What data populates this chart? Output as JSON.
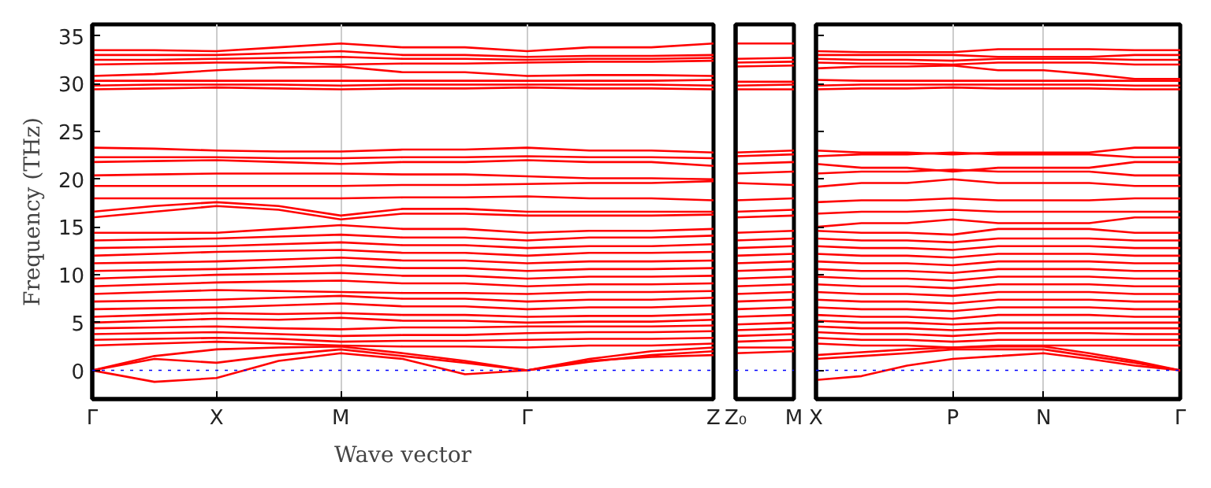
{
  "chart_data": [
    {
      "type": "line",
      "ylabel": "Frequency (THz)",
      "xlabel": "Wave vector",
      "categories": [
        "Γ",
        null,
        "X",
        null,
        "M",
        null,
        null,
        "Γ",
        null,
        null,
        "Z"
      ],
      "ylim": [
        -3,
        36.2
      ],
      "yticks": [
        0,
        5,
        10,
        15,
        20,
        25,
        30,
        35
      ],
      "grid": "x",
      "ref_lines": [
        {
          "axis": "y",
          "value": 0,
          "color": "#0000ff",
          "line_style": "dotted"
        }
      ],
      "series": [
        {
          "color": "#ff0000",
          "values": [
            0,
            -1.2,
            -0.8,
            1.0,
            1.8,
            1.2,
            -0.4,
            0,
            1.0,
            1.4,
            1.6
          ]
        },
        {
          "color": "#ff0000",
          "values": [
            0,
            1.2,
            0.8,
            1.6,
            2.2,
            1.5,
            0.8,
            0,
            0.9,
            1.6,
            2.0
          ]
        },
        {
          "color": "#ff0000",
          "values": [
            0,
            1.5,
            2.2,
            2.4,
            2.5,
            1.8,
            1.0,
            0,
            1.2,
            2.0,
            2.4
          ]
        },
        {
          "color": "#ff0000",
          "values": [
            2.6,
            2.8,
            3.0,
            2.8,
            2.6,
            2.5,
            2.5,
            2.4,
            2.6,
            2.6,
            2.8
          ]
        },
        {
          "color": "#ff0000",
          "values": [
            3.2,
            3.3,
            3.4,
            3.3,
            3.0,
            3.1,
            3.1,
            3.2,
            3.3,
            3.3,
            3.4
          ]
        },
        {
          "color": "#ff0000",
          "values": [
            3.8,
            3.9,
            4.0,
            3.8,
            3.6,
            3.7,
            3.7,
            3.9,
            4.0,
            4.0,
            4.1
          ]
        },
        {
          "color": "#ff0000",
          "values": [
            4.4,
            4.5,
            4.6,
            4.4,
            4.3,
            4.5,
            4.5,
            4.6,
            4.6,
            4.6,
            4.7
          ]
        },
        {
          "color": "#ff0000",
          "values": [
            5.0,
            5.2,
            5.4,
            5.3,
            5.5,
            5.2,
            5.2,
            5.0,
            5.1,
            5.1,
            5.3
          ]
        },
        {
          "color": "#ff0000",
          "values": [
            5.6,
            5.8,
            6.0,
            5.9,
            6.0,
            5.8,
            5.8,
            5.6,
            5.7,
            5.7,
            5.9
          ]
        },
        {
          "color": "#ff0000",
          "values": [
            6.4,
            6.5,
            6.6,
            6.8,
            7.0,
            6.7,
            6.7,
            6.4,
            6.6,
            6.6,
            6.8
          ]
        },
        {
          "color": "#ff0000",
          "values": [
            7.2,
            7.3,
            7.4,
            7.6,
            7.8,
            7.5,
            7.5,
            7.2,
            7.4,
            7.4,
            7.6
          ]
        },
        {
          "color": "#ff0000",
          "values": [
            8.0,
            8.2,
            8.4,
            8.3,
            8.2,
            8.1,
            8.1,
            8.0,
            8.2,
            8.2,
            8.3
          ]
        },
        {
          "color": "#ff0000",
          "values": [
            8.8,
            9.0,
            9.2,
            9.3,
            9.4,
            9.1,
            9.1,
            8.8,
            9.0,
            9.0,
            9.1
          ]
        },
        {
          "color": "#ff0000",
          "values": [
            9.6,
            9.8,
            10.0,
            10.1,
            10.2,
            9.9,
            9.9,
            9.6,
            9.8,
            9.8,
            9.9
          ]
        },
        {
          "color": "#ff0000",
          "values": [
            10.4,
            10.5,
            10.6,
            10.8,
            11.0,
            10.7,
            10.7,
            10.4,
            10.6,
            10.6,
            10.7
          ]
        },
        {
          "color": "#ff0000",
          "values": [
            11.2,
            11.3,
            11.4,
            11.6,
            11.8,
            11.5,
            11.5,
            11.2,
            11.4,
            11.4,
            11.5
          ]
        },
        {
          "color": "#ff0000",
          "values": [
            12.0,
            12.2,
            12.4,
            12.5,
            12.6,
            12.3,
            12.3,
            12.0,
            12.3,
            12.3,
            12.4
          ]
        },
        {
          "color": "#ff0000",
          "values": [
            12.8,
            12.9,
            13.0,
            13.2,
            13.4,
            13.1,
            13.1,
            12.8,
            13.0,
            13.0,
            13.2
          ]
        },
        {
          "color": "#ff0000",
          "values": [
            13.6,
            13.7,
            13.8,
            14.0,
            14.2,
            13.9,
            13.9,
            13.6,
            13.9,
            13.9,
            14.1
          ]
        },
        {
          "color": "#ff0000",
          "values": [
            14.4,
            14.4,
            14.4,
            14.8,
            15.2,
            14.8,
            14.8,
            14.4,
            14.6,
            14.6,
            14.8
          ]
        },
        {
          "color": "#ff0000",
          "values": [
            16.0,
            16.6,
            17.2,
            16.8,
            15.8,
            16.4,
            16.4,
            16.2,
            16.2,
            16.2,
            16.3
          ]
        },
        {
          "color": "#ff0000",
          "values": [
            16.6,
            17.2,
            17.6,
            17.2,
            16.2,
            16.9,
            16.9,
            16.6,
            16.6,
            16.6,
            16.6
          ]
        },
        {
          "color": "#ff0000",
          "values": [
            18.0,
            18.0,
            18.0,
            18.0,
            18.0,
            18.1,
            18.1,
            18.2,
            18.0,
            18.0,
            17.8
          ]
        },
        {
          "color": "#ff0000",
          "values": [
            19.3,
            19.3,
            19.3,
            19.3,
            19.3,
            19.4,
            19.4,
            19.5,
            19.6,
            19.6,
            19.8
          ]
        },
        {
          "color": "#ff0000",
          "values": [
            20.4,
            20.5,
            20.6,
            20.6,
            20.6,
            20.5,
            20.5,
            20.3,
            20.1,
            20.1,
            20.0
          ]
        },
        {
          "color": "#ff0000",
          "values": [
            21.8,
            21.9,
            22.0,
            21.8,
            21.6,
            21.8,
            21.8,
            22.0,
            21.8,
            21.8,
            21.4
          ]
        },
        {
          "color": "#ff0000",
          "values": [
            22.3,
            22.3,
            22.3,
            22.2,
            22.2,
            22.3,
            22.3,
            22.4,
            22.3,
            22.3,
            22.2
          ]
        },
        {
          "color": "#ff0000",
          "values": [
            23.3,
            23.2,
            23.0,
            22.9,
            22.9,
            23.1,
            23.1,
            23.3,
            23.0,
            23.0,
            22.8
          ]
        },
        {
          "color": "#ff0000",
          "values": [
            29.4,
            29.5,
            29.6,
            29.5,
            29.4,
            29.5,
            29.5,
            29.6,
            29.5,
            29.5,
            29.4
          ]
        },
        {
          "color": "#ff0000",
          "values": [
            29.8,
            29.9,
            29.9,
            29.9,
            29.8,
            29.9,
            29.9,
            29.9,
            29.9,
            29.9,
            29.8
          ]
        },
        {
          "color": "#ff0000",
          "values": [
            30.3,
            30.3,
            30.3,
            30.3,
            30.3,
            30.3,
            30.3,
            30.3,
            30.3,
            30.3,
            30.4
          ]
        },
        {
          "color": "#ff0000",
          "values": [
            30.8,
            31.0,
            31.4,
            31.7,
            31.8,
            31.2,
            31.2,
            30.8,
            30.9,
            30.9,
            30.8
          ]
        },
        {
          "color": "#ff0000",
          "values": [
            32.0,
            32.1,
            32.2,
            32.2,
            32.0,
            32.1,
            32.1,
            32.2,
            32.3,
            32.3,
            32.4
          ]
        },
        {
          "color": "#ff0000",
          "values": [
            32.5,
            32.5,
            32.6,
            32.7,
            32.8,
            32.6,
            32.6,
            32.5,
            32.6,
            32.6,
            32.7
          ]
        },
        {
          "color": "#ff0000",
          "values": [
            33.0,
            33.0,
            33.0,
            33.2,
            33.4,
            33.0,
            33.0,
            32.8,
            32.9,
            32.9,
            33.0
          ]
        },
        {
          "color": "#ff0000",
          "values": [
            33.5,
            33.5,
            33.4,
            33.8,
            34.2,
            33.8,
            33.8,
            33.4,
            33.8,
            33.8,
            34.2
          ]
        }
      ]
    },
    {
      "type": "line",
      "categories": [
        "Z₀",
        "M"
      ],
      "ylim": [
        -3,
        36.2
      ],
      "tick_labels": "x",
      "ref_lines": [
        {
          "axis": "y",
          "value": 0,
          "color": "#0000ff",
          "line_style": "dotted"
        }
      ],
      "series": [
        {
          "color": "#ff0000",
          "values": [
            1.8,
            2.0
          ]
        },
        {
          "color": "#ff0000",
          "values": [
            2.4,
            2.4
          ]
        },
        {
          "color": "#ff0000",
          "values": [
            3.0,
            3.2
          ]
        },
        {
          "color": "#ff0000",
          "values": [
            3.6,
            3.8
          ]
        },
        {
          "color": "#ff0000",
          "values": [
            4.2,
            4.4
          ]
        },
        {
          "color": "#ff0000",
          "values": [
            4.8,
            5.0
          ]
        },
        {
          "color": "#ff0000",
          "values": [
            5.6,
            5.8
          ]
        },
        {
          "color": "#ff0000",
          "values": [
            6.4,
            6.6
          ]
        },
        {
          "color": "#ff0000",
          "values": [
            7.2,
            7.4
          ]
        },
        {
          "color": "#ff0000",
          "values": [
            8.0,
            8.2
          ]
        },
        {
          "color": "#ff0000",
          "values": [
            8.8,
            9.0
          ]
        },
        {
          "color": "#ff0000",
          "values": [
            9.6,
            9.8
          ]
        },
        {
          "color": "#ff0000",
          "values": [
            10.4,
            10.6
          ]
        },
        {
          "color": "#ff0000",
          "values": [
            11.2,
            11.4
          ]
        },
        {
          "color": "#ff0000",
          "values": [
            12.0,
            12.2
          ]
        },
        {
          "color": "#ff0000",
          "values": [
            12.8,
            13.0
          ]
        },
        {
          "color": "#ff0000",
          "values": [
            13.6,
            13.8
          ]
        },
        {
          "color": "#ff0000",
          "values": [
            14.4,
            14.6
          ]
        },
        {
          "color": "#ff0000",
          "values": [
            16.0,
            16.2
          ]
        },
        {
          "color": "#ff0000",
          "values": [
            16.6,
            16.8
          ]
        },
        {
          "color": "#ff0000",
          "values": [
            17.8,
            18.0
          ]
        },
        {
          "color": "#ff0000",
          "values": [
            19.6,
            19.4
          ]
        },
        {
          "color": "#ff0000",
          "values": [
            20.6,
            20.8
          ]
        },
        {
          "color": "#ff0000",
          "values": [
            21.6,
            21.8
          ]
        },
        {
          "color": "#ff0000",
          "values": [
            22.4,
            22.6
          ]
        },
        {
          "color": "#ff0000",
          "values": [
            22.8,
            23.0
          ]
        },
        {
          "color": "#ff0000",
          "values": [
            29.4,
            29.4
          ]
        },
        {
          "color": "#ff0000",
          "values": [
            29.8,
            29.9
          ]
        },
        {
          "color": "#ff0000",
          "values": [
            30.2,
            30.2
          ]
        },
        {
          "color": "#ff0000",
          "values": [
            31.8,
            31.9
          ]
        },
        {
          "color": "#ff0000",
          "values": [
            32.2,
            32.3
          ]
        },
        {
          "color": "#ff0000",
          "values": [
            32.6,
            32.7
          ]
        },
        {
          "color": "#ff0000",
          "values": [
            34.2,
            34.2
          ]
        }
      ]
    },
    {
      "type": "line",
      "categories": [
        "X",
        null,
        null,
        "P",
        null,
        "N",
        null,
        null,
        "Γ"
      ],
      "ylim": [
        -3,
        36.2
      ],
      "yticks": [
        0,
        5,
        10,
        15,
        20,
        25,
        30,
        35
      ],
      "tick_labels": "x",
      "grid": "x",
      "ref_lines": [
        {
          "axis": "y",
          "value": 0,
          "color": "#0000ff",
          "line_style": "dotted"
        }
      ],
      "series": [
        {
          "color": "#ff0000",
          "values": [
            -1.0,
            -0.6,
            0.5,
            1.2,
            1.5,
            1.8,
            1.2,
            0.5,
            0
          ]
        },
        {
          "color": "#ff0000",
          "values": [
            1.2,
            1.5,
            1.8,
            2.2,
            2.2,
            2.2,
            1.5,
            0.8,
            0
          ]
        },
        {
          "color": "#ff0000",
          "values": [
            1.6,
            1.9,
            2.2,
            2.4,
            2.5,
            2.5,
            1.8,
            1.0,
            0
          ]
        },
        {
          "color": "#ff0000",
          "values": [
            2.8,
            2.6,
            2.6,
            2.4,
            2.6,
            2.6,
            2.6,
            2.6,
            2.6
          ]
        },
        {
          "color": "#ff0000",
          "values": [
            3.4,
            3.2,
            3.2,
            3.0,
            3.2,
            3.2,
            3.2,
            3.2,
            3.2
          ]
        },
        {
          "color": "#ff0000",
          "values": [
            4.0,
            3.8,
            3.8,
            3.6,
            3.9,
            3.9,
            3.9,
            3.8,
            3.8
          ]
        },
        {
          "color": "#ff0000",
          "values": [
            4.6,
            4.4,
            4.4,
            4.2,
            4.4,
            4.4,
            4.4,
            4.4,
            4.4
          ]
        },
        {
          "color": "#ff0000",
          "values": [
            5.2,
            5.0,
            5.0,
            4.8,
            5.0,
            5.0,
            5.0,
            5.0,
            5.0
          ]
        },
        {
          "color": "#ff0000",
          "values": [
            5.8,
            5.6,
            5.6,
            5.4,
            5.8,
            5.8,
            5.8,
            5.6,
            5.6
          ]
        },
        {
          "color": "#ff0000",
          "values": [
            6.6,
            6.4,
            6.4,
            6.2,
            6.6,
            6.6,
            6.6,
            6.4,
            6.4
          ]
        },
        {
          "color": "#ff0000",
          "values": [
            7.4,
            7.2,
            7.2,
            7.0,
            7.4,
            7.4,
            7.4,
            7.2,
            7.2
          ]
        },
        {
          "color": "#ff0000",
          "values": [
            8.2,
            8.0,
            8.0,
            7.8,
            8.2,
            8.2,
            8.2,
            8.0,
            8.0
          ]
        },
        {
          "color": "#ff0000",
          "values": [
            9.0,
            8.8,
            8.8,
            8.6,
            9.0,
            9.0,
            9.0,
            8.8,
            8.8
          ]
        },
        {
          "color": "#ff0000",
          "values": [
            9.8,
            9.6,
            9.6,
            9.4,
            9.8,
            9.8,
            9.8,
            9.6,
            9.6
          ]
        },
        {
          "color": "#ff0000",
          "values": [
            10.6,
            10.4,
            10.4,
            10.2,
            10.6,
            10.6,
            10.6,
            10.4,
            10.4
          ]
        },
        {
          "color": "#ff0000",
          "values": [
            11.4,
            11.2,
            11.2,
            11.0,
            11.4,
            11.4,
            11.4,
            11.2,
            11.2
          ]
        },
        {
          "color": "#ff0000",
          "values": [
            12.2,
            12.0,
            12.0,
            11.8,
            12.2,
            12.2,
            12.2,
            12.0,
            12.0
          ]
        },
        {
          "color": "#ff0000",
          "values": [
            13.0,
            12.8,
            12.8,
            12.6,
            13.0,
            13.0,
            13.0,
            12.8,
            12.8
          ]
        },
        {
          "color": "#ff0000",
          "values": [
            13.8,
            13.6,
            13.6,
            13.4,
            13.8,
            13.8,
            13.8,
            13.6,
            13.6
          ]
        },
        {
          "color": "#ff0000",
          "values": [
            14.6,
            14.4,
            14.4,
            14.2,
            14.8,
            14.8,
            14.8,
            14.4,
            14.4
          ]
        },
        {
          "color": "#ff0000",
          "values": [
            15.0,
            15.4,
            15.4,
            15.8,
            15.4,
            15.4,
            15.4,
            16.0,
            16.0
          ]
        },
        {
          "color": "#ff0000",
          "values": [
            16.4,
            16.6,
            16.6,
            16.8,
            16.6,
            16.6,
            16.6,
            16.6,
            16.6
          ]
        },
        {
          "color": "#ff0000",
          "values": [
            17.6,
            17.8,
            17.8,
            18.0,
            17.8,
            17.8,
            17.8,
            18.0,
            18.0
          ]
        },
        {
          "color": "#ff0000",
          "values": [
            19.2,
            19.6,
            19.6,
            20.0,
            19.6,
            19.6,
            19.6,
            19.3,
            19.3
          ]
        },
        {
          "color": "#ff0000",
          "values": [
            20.6,
            20.8,
            20.8,
            21.0,
            20.8,
            20.8,
            20.8,
            20.4,
            20.4
          ]
        },
        {
          "color": "#ff0000",
          "values": [
            21.6,
            21.2,
            21.2,
            20.8,
            21.2,
            21.2,
            21.2,
            21.8,
            21.8
          ]
        },
        {
          "color": "#ff0000",
          "values": [
            22.4,
            22.6,
            22.6,
            22.8,
            22.6,
            22.6,
            22.6,
            22.3,
            22.3
          ]
        },
        {
          "color": "#ff0000",
          "values": [
            23.0,
            22.8,
            22.8,
            22.6,
            22.8,
            22.8,
            22.8,
            23.3,
            23.3
          ]
        },
        {
          "color": "#ff0000",
          "values": [
            29.4,
            29.5,
            29.5,
            29.6,
            29.5,
            29.5,
            29.5,
            29.4,
            29.4
          ]
        },
        {
          "color": "#ff0000",
          "values": [
            29.8,
            29.9,
            29.9,
            29.9,
            29.9,
            29.9,
            29.9,
            29.8,
            29.8
          ]
        },
        {
          "color": "#ff0000",
          "values": [
            30.4,
            30.3,
            30.3,
            30.3,
            30.3,
            30.3,
            30.3,
            30.3,
            30.3
          ]
        },
        {
          "color": "#ff0000",
          "values": [
            31.6,
            31.8,
            31.8,
            31.9,
            31.4,
            31.4,
            31.0,
            30.5,
            30.5
          ]
        },
        {
          "color": "#ff0000",
          "values": [
            32.2,
            32.1,
            32.1,
            32.0,
            32.2,
            32.2,
            32.2,
            32.0,
            32.0
          ]
        },
        {
          "color": "#ff0000",
          "values": [
            32.6,
            32.5,
            32.5,
            32.4,
            32.6,
            32.6,
            32.6,
            32.5,
            32.5
          ]
        },
        {
          "color": "#ff0000",
          "values": [
            33.0,
            33.0,
            33.0,
            33.0,
            32.8,
            32.8,
            32.8,
            33.0,
            33.0
          ]
        },
        {
          "color": "#ff0000",
          "values": [
            33.4,
            33.3,
            33.3,
            33.3,
            33.6,
            33.6,
            33.6,
            33.5,
            33.5
          ]
        }
      ]
    }
  ]
}
